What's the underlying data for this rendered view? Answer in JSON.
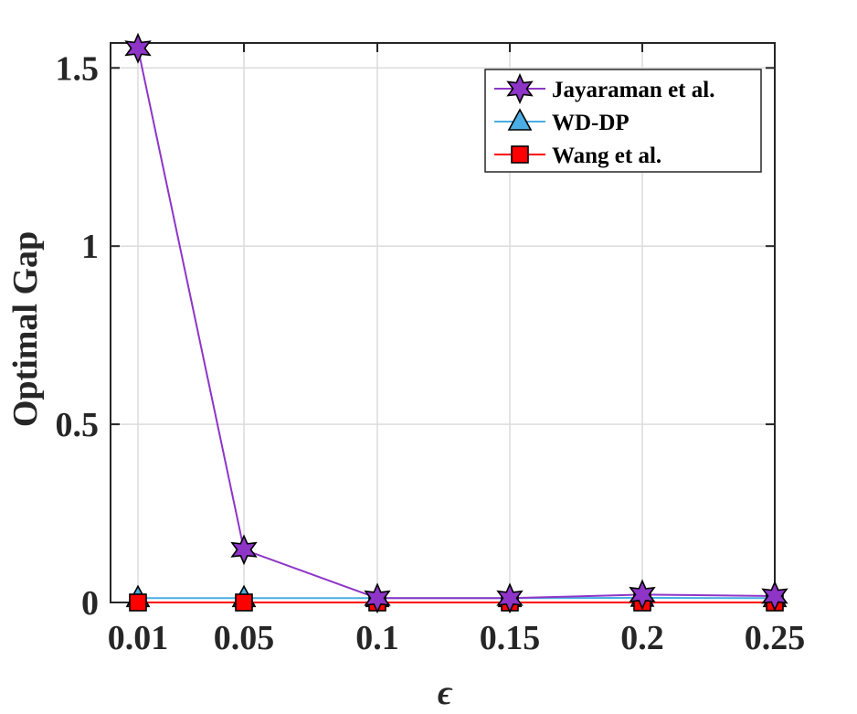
{
  "chart_data": {
    "type": "line",
    "categories": [
      "0.01",
      "0.05",
      "0.1",
      "0.15",
      "0.2",
      "0.25"
    ],
    "xlabel": "ϵ",
    "ylabel": "Optimal Gap",
    "ylim": [
      0,
      1.57
    ],
    "yticks": [
      "0",
      "0.5",
      "1",
      "1.5"
    ],
    "grid": true,
    "legend_position": "top-right",
    "series": [
      {
        "name": "Jayaraman et al.",
        "values": [
          1.555,
          0.148,
          0.012,
          0.012,
          0.022,
          0.018
        ],
        "color": "#8e35c8",
        "marker": "star"
      },
      {
        "name": "WD-DP",
        "values": [
          0.012,
          0.012,
          0.012,
          0.012,
          0.013,
          0.012
        ],
        "color": "#4aaee4",
        "marker": "triangle"
      },
      {
        "name": "Wang et al.",
        "values": [
          0.0,
          0.0,
          0.0,
          0.0,
          0.0,
          0.0
        ],
        "color": "#ff0000",
        "marker": "square"
      }
    ]
  }
}
